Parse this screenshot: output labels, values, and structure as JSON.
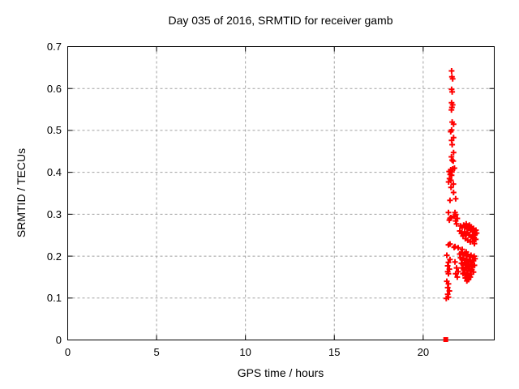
{
  "chart_data": {
    "type": "scatter",
    "title": "Day 035 of 2016, SRMTID for receiver gamb",
    "xlabel": "GPS time / hours",
    "ylabel": "SRMTID / TECUs",
    "xlim": [
      0,
      24
    ],
    "ylim": [
      0,
      0.7
    ],
    "xticks": {
      "values": [
        0,
        5,
        10,
        15,
        20
      ],
      "labels": [
        "0",
        "5",
        "10",
        "15",
        "20"
      ]
    },
    "yticks": {
      "values": [
        0,
        0.1,
        0.2,
        0.3,
        0.4,
        0.5,
        0.6,
        0.7
      ],
      "labels": [
        "0",
        "0.1",
        "0.2",
        "0.3",
        "0.4",
        "0.5",
        "0.6",
        "0.7"
      ]
    },
    "grid": true,
    "grid_color": "#a0a0a0",
    "axis_color": "#000000",
    "background": "#ffffff",
    "legend": "none",
    "series": [
      {
        "name": "SRMTID",
        "marker": "plus",
        "color": "#ff0000",
        "points": [
          [
            21.6,
            0.642
          ],
          [
            21.62,
            0.628
          ],
          [
            21.66,
            0.623
          ],
          [
            21.6,
            0.598
          ],
          [
            21.63,
            0.592
          ],
          [
            21.6,
            0.566
          ],
          [
            21.66,
            0.561
          ],
          [
            21.62,
            0.555
          ],
          [
            21.59,
            0.549
          ],
          [
            21.63,
            0.52
          ],
          [
            21.71,
            0.515
          ],
          [
            21.6,
            0.501
          ],
          [
            21.55,
            0.497
          ],
          [
            21.71,
            0.483
          ],
          [
            21.6,
            0.476
          ],
          [
            21.63,
            0.466
          ],
          [
            21.71,
            0.447
          ],
          [
            21.59,
            0.437
          ],
          [
            21.63,
            0.429
          ],
          [
            21.69,
            0.427
          ],
          [
            21.76,
            0.41
          ],
          [
            21.66,
            0.408
          ],
          [
            21.55,
            0.406
          ],
          [
            21.46,
            0.402
          ],
          [
            21.62,
            0.401
          ],
          [
            21.52,
            0.395
          ],
          [
            21.6,
            0.393
          ],
          [
            21.48,
            0.385
          ],
          [
            21.56,
            0.381
          ],
          [
            21.43,
            0.377
          ],
          [
            21.7,
            0.372
          ],
          [
            21.57,
            0.364
          ],
          [
            21.71,
            0.352
          ],
          [
            21.51,
            0.333
          ],
          [
            21.83,
            0.337
          ],
          [
            21.42,
            0.304
          ],
          [
            21.79,
            0.304
          ],
          [
            21.83,
            0.299
          ],
          [
            21.74,
            0.295
          ],
          [
            21.92,
            0.29
          ],
          [
            21.51,
            0.29
          ],
          [
            21.56,
            0.292
          ],
          [
            21.47,
            0.286
          ],
          [
            21.83,
            0.284
          ],
          [
            21.88,
            0.277
          ],
          [
            21.51,
            0.229
          ],
          [
            21.42,
            0.227
          ],
          [
            21.79,
            0.223
          ],
          [
            21.74,
            0.221
          ],
          [
            21.97,
            0.22
          ],
          [
            22.2,
            0.216
          ],
          [
            22.42,
            0.21
          ],
          [
            21.33,
            0.202
          ],
          [
            21.51,
            0.192
          ],
          [
            21.42,
            0.185
          ],
          [
            21.38,
            0.177
          ],
          [
            21.47,
            0.169
          ],
          [
            21.38,
            0.163
          ],
          [
            21.42,
            0.158
          ],
          [
            21.33,
            0.14
          ],
          [
            21.42,
            0.134
          ],
          [
            21.38,
            0.125
          ],
          [
            21.47,
            0.117
          ],
          [
            21.38,
            0.109
          ],
          [
            21.42,
            0.102
          ],
          [
            21.3,
            0.099
          ],
          [
            22.1,
            0.272
          ],
          [
            22.19,
            0.268
          ],
          [
            22.28,
            0.274
          ],
          [
            22.37,
            0.27
          ],
          [
            22.42,
            0.277
          ],
          [
            22.46,
            0.266
          ],
          [
            22.51,
            0.272
          ],
          [
            22.56,
            0.268
          ],
          [
            22.6,
            0.274
          ],
          [
            22.65,
            0.262
          ],
          [
            22.69,
            0.27
          ],
          [
            22.74,
            0.264
          ],
          [
            22.79,
            0.258
          ],
          [
            22.83,
            0.266
          ],
          [
            22.88,
            0.26
          ],
          [
            22.92,
            0.252
          ],
          [
            22.97,
            0.262
          ],
          [
            23.01,
            0.255
          ],
          [
            22.33,
            0.258
          ],
          [
            22.42,
            0.252
          ],
          [
            22.51,
            0.256
          ],
          [
            22.6,
            0.25
          ],
          [
            22.69,
            0.246
          ],
          [
            22.78,
            0.25
          ],
          [
            22.87,
            0.244
          ],
          [
            22.96,
            0.24
          ],
          [
            22.24,
            0.248
          ],
          [
            22.37,
            0.242
          ],
          [
            22.51,
            0.238
          ],
          [
            22.65,
            0.234
          ],
          [
            22.78,
            0.236
          ],
          [
            22.88,
            0.23
          ],
          [
            22.15,
            0.254
          ],
          [
            22.06,
            0.26
          ],
          [
            22.06,
            0.205
          ],
          [
            22.15,
            0.208
          ],
          [
            22.24,
            0.203
          ],
          [
            22.33,
            0.206
          ],
          [
            22.42,
            0.201
          ],
          [
            22.51,
            0.204
          ],
          [
            22.6,
            0.199
          ],
          [
            22.69,
            0.202
          ],
          [
            22.78,
            0.197
          ],
          [
            22.87,
            0.2
          ],
          [
            22.92,
            0.194
          ],
          [
            22.1,
            0.196
          ],
          [
            22.19,
            0.192
          ],
          [
            22.28,
            0.195
          ],
          [
            22.37,
            0.19
          ],
          [
            22.46,
            0.193
          ],
          [
            22.56,
            0.188
          ],
          [
            22.65,
            0.191
          ],
          [
            22.74,
            0.186
          ],
          [
            22.83,
            0.189
          ],
          [
            22.15,
            0.183
          ],
          [
            22.24,
            0.18
          ],
          [
            22.33,
            0.184
          ],
          [
            22.42,
            0.178
          ],
          [
            22.51,
            0.182
          ],
          [
            22.6,
            0.176
          ],
          [
            22.69,
            0.18
          ],
          [
            22.78,
            0.174
          ],
          [
            22.88,
            0.178
          ],
          [
            22.19,
            0.172
          ],
          [
            22.28,
            0.168
          ],
          [
            22.37,
            0.173
          ],
          [
            22.46,
            0.166
          ],
          [
            22.56,
            0.17
          ],
          [
            22.65,
            0.164
          ],
          [
            22.74,
            0.168
          ],
          [
            22.83,
            0.162
          ],
          [
            22.24,
            0.158
          ],
          [
            22.33,
            0.161
          ],
          [
            22.42,
            0.155
          ],
          [
            22.51,
            0.159
          ],
          [
            22.6,
            0.153
          ],
          [
            22.69,
            0.157
          ],
          [
            22.37,
            0.148
          ],
          [
            22.46,
            0.151
          ],
          [
            22.56,
            0.146
          ],
          [
            22.65,
            0.15
          ],
          [
            22.46,
            0.141
          ],
          [
            22.55,
            0.144
          ],
          [
            21.79,
            0.186
          ],
          [
            21.88,
            0.172
          ],
          [
            21.83,
            0.158
          ],
          [
            21.92,
            0.15
          ],
          [
            21.97,
            0.163
          ]
        ]
      },
      {
        "name": "zero-marker",
        "marker": "filled-square",
        "color": "#ff0000",
        "points": [
          [
            21.27,
            0.0
          ]
        ]
      }
    ]
  }
}
